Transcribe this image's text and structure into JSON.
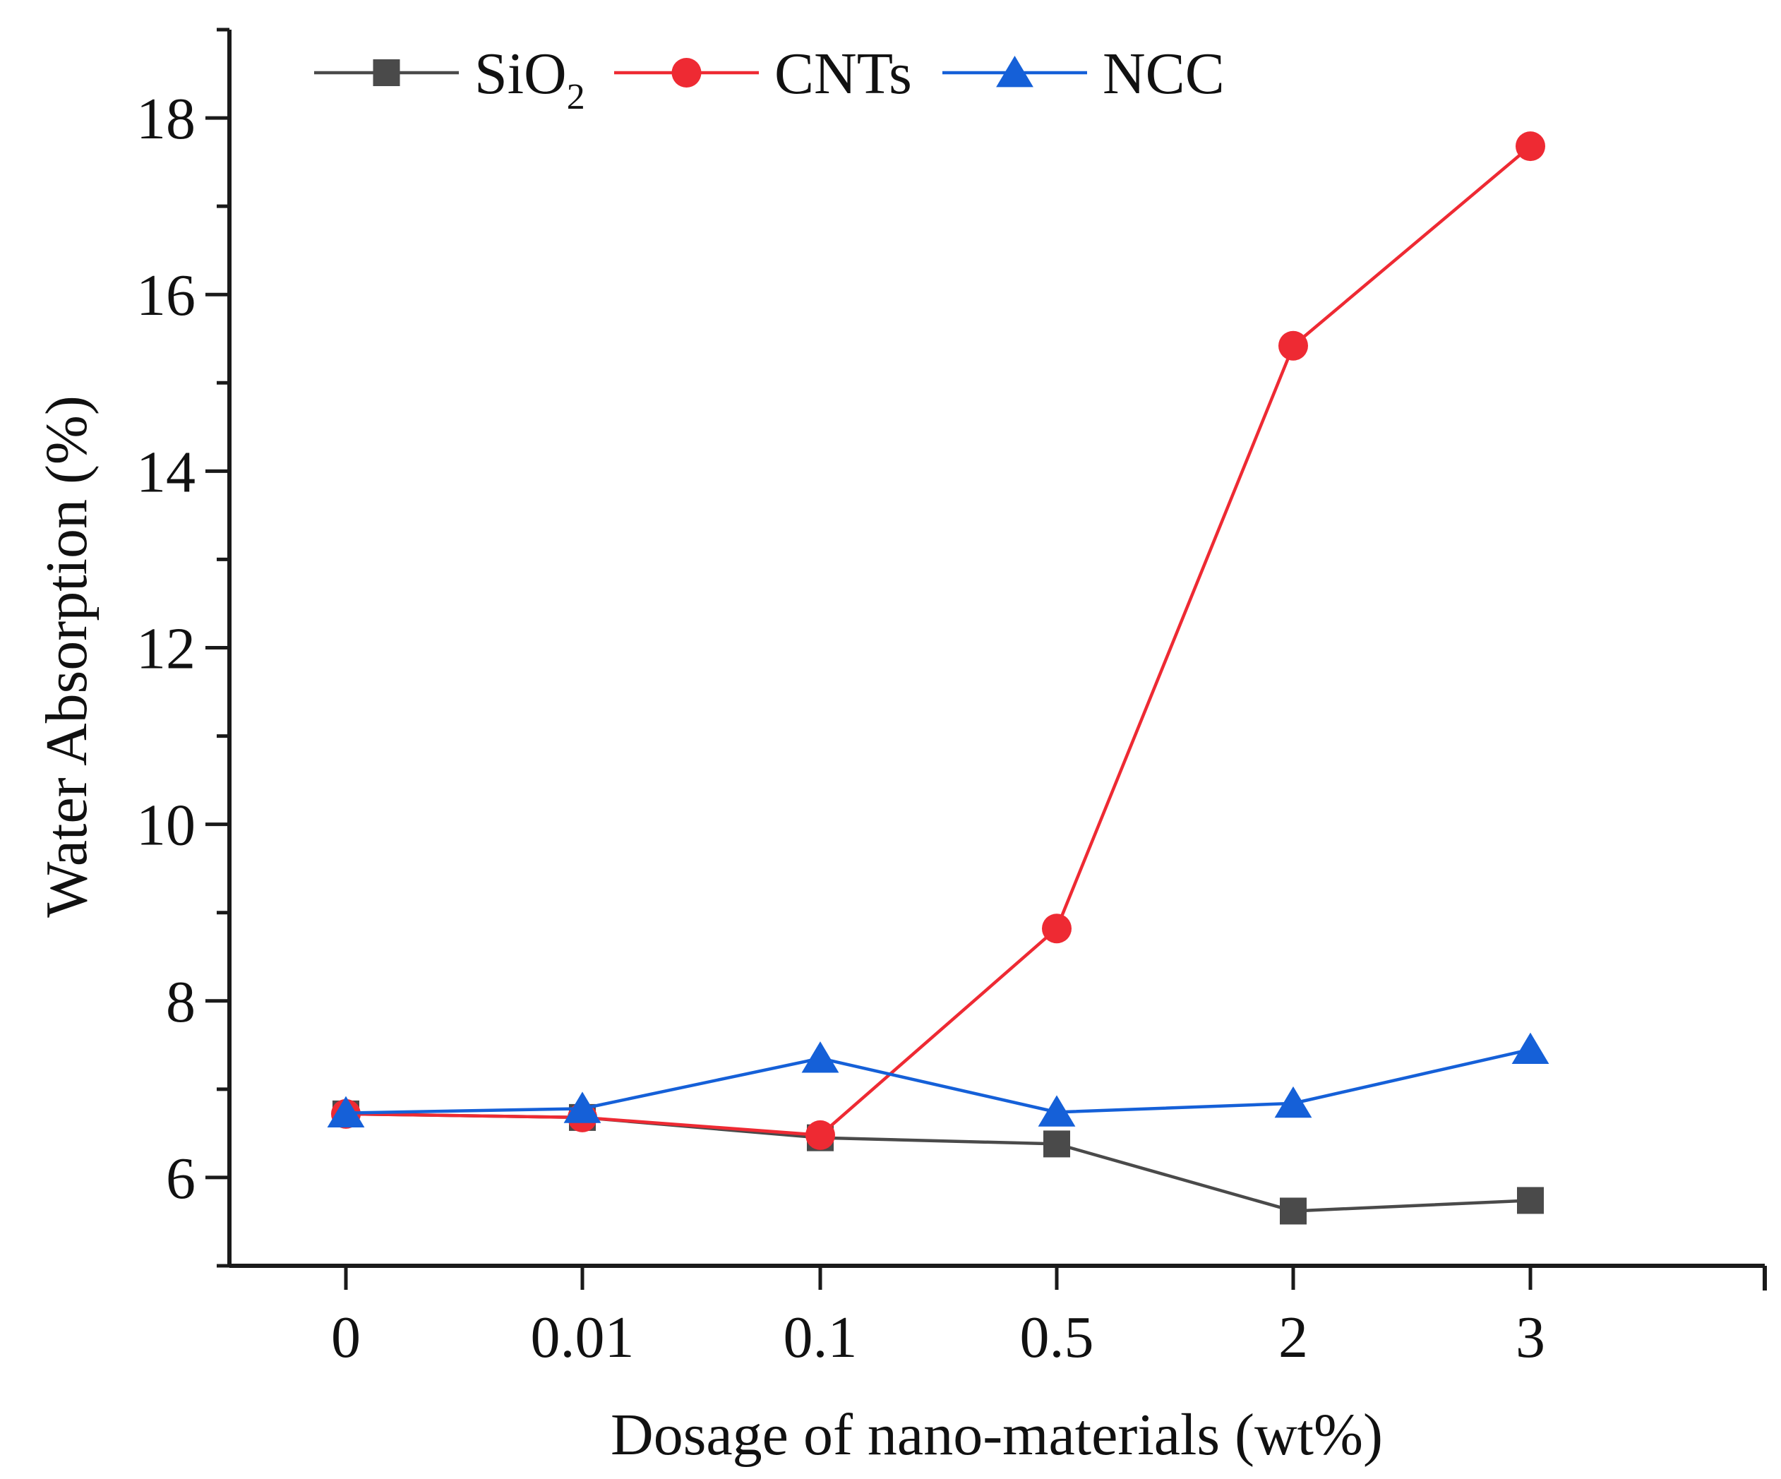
{
  "chart_data": {
    "type": "line",
    "title": "",
    "xlabel": "Dosage of nano-materials (wt%)",
    "ylabel": "Water Absorption (%)",
    "categories": [
      "0",
      "0.01",
      "0.1",
      "0.5",
      "2",
      "3"
    ],
    "ylim": [
      5.0,
      19.0
    ],
    "yticks": [
      6,
      8,
      10,
      12,
      14,
      16,
      18
    ],
    "yticklabels": [
      "6",
      "8",
      "10",
      "12",
      "14",
      "16",
      "18"
    ],
    "grid": false,
    "legend_position": "top-left",
    "series": [
      {
        "name": "SiO2",
        "label_main": "SiO",
        "label_sub": "2",
        "color": "#4a4a4a",
        "marker": "square",
        "values": [
          6.72,
          6.68,
          6.45,
          6.38,
          5.62,
          5.74
        ]
      },
      {
        "name": "CNTs",
        "label_main": "CNTs",
        "label_sub": "",
        "color": "#ee2a33",
        "marker": "circle",
        "values": [
          6.72,
          6.68,
          6.48,
          8.82,
          15.42,
          17.68
        ]
      },
      {
        "name": "NCC",
        "label_main": "NCC",
        "label_sub": "",
        "color": "#1560d8",
        "marker": "triangle",
        "values": [
          6.73,
          6.78,
          7.35,
          6.74,
          6.84,
          7.45
        ]
      }
    ]
  }
}
